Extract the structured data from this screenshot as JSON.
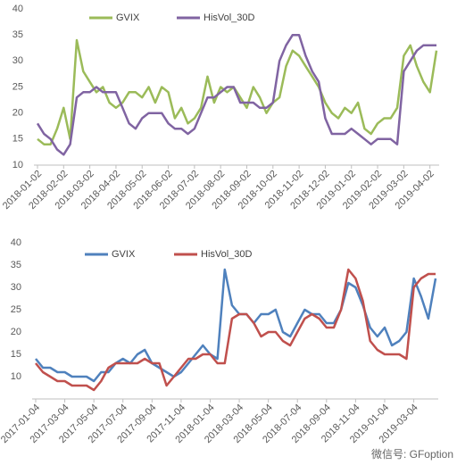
{
  "chart_data": [
    {
      "type": "line",
      "categories": [
        "2018-01-02",
        null,
        null,
        null,
        "2018-02-02",
        null,
        null,
        null,
        "2018-03-02",
        null,
        null,
        null,
        "2018-04-02",
        null,
        null,
        null,
        "2018-05-02",
        null,
        null,
        null,
        "2018-06-02",
        null,
        null,
        null,
        "2018-07-02",
        null,
        null,
        null,
        "2018-08-02",
        null,
        null,
        null,
        "2018-09-02",
        null,
        null,
        null,
        "2018-10-02",
        null,
        null,
        null,
        "2018-11-02",
        null,
        null,
        null,
        "2018-12-02",
        null,
        null,
        null,
        "2019-01-02",
        null,
        null,
        null,
        "2019-02-02",
        null,
        null,
        null,
        "2019-03-02",
        null,
        null,
        null,
        "2019-04-02",
        null
      ],
      "series": [
        {
          "name": "GVIX",
          "color": "#9bbb59",
          "values": [
            15,
            14,
            14,
            17,
            21,
            15,
            34,
            28,
            26,
            24,
            25,
            22,
            21,
            22,
            24,
            24,
            23,
            25,
            22,
            25,
            24,
            19,
            21,
            18,
            19,
            21,
            27,
            22,
            25,
            24,
            25,
            23,
            21,
            25,
            23,
            20,
            22,
            23,
            29,
            32,
            31,
            29,
            27,
            25,
            22,
            20,
            19,
            21,
            20,
            22,
            17,
            16,
            18,
            19,
            19,
            21,
            31,
            33,
            29,
            26,
            24,
            32
          ]
        },
        {
          "name": "HisVol_30D",
          "color": "#8064a2",
          "values": [
            18,
            16,
            15,
            13,
            12,
            14,
            23,
            24,
            24,
            25,
            24,
            24,
            24,
            21,
            18,
            17,
            19,
            20,
            20,
            20,
            18,
            17,
            17,
            16,
            17,
            20,
            23,
            23,
            24,
            25,
            25,
            22,
            22,
            22,
            21,
            21,
            22,
            30,
            33,
            35,
            35,
            31,
            28,
            26,
            19,
            16,
            16,
            16,
            17,
            16,
            15,
            14,
            15,
            15,
            15,
            14,
            28,
            30,
            32,
            33,
            33,
            33
          ]
        }
      ],
      "ylim": [
        10,
        40
      ],
      "yticks": [
        10,
        15,
        20,
        25,
        30,
        35,
        40
      ],
      "legend": "top"
    },
    {
      "type": "line",
      "categories": [
        "2017-01-04",
        null,
        null,
        null,
        "2017-03-04",
        null,
        null,
        null,
        "2017-05-04",
        null,
        null,
        null,
        "2017-07-04",
        null,
        null,
        null,
        "2017-09-04",
        null,
        null,
        null,
        "2017-11-04",
        null,
        null,
        null,
        "2018-01-04",
        null,
        null,
        null,
        "2018-03-04",
        null,
        null,
        null,
        "2018-05-04",
        null,
        null,
        null,
        "2018-07-04",
        null,
        null,
        null,
        "2018-09-04",
        null,
        null,
        null,
        "2018-11-04",
        null,
        null,
        null,
        "2019-01-04",
        null,
        null,
        null,
        "2019-03-04",
        null,
        null,
        null
      ],
      "series": [
        {
          "name": "GVIX",
          "color": "#4f81bd",
          "values": [
            14,
            12,
            12,
            11,
            11,
            10,
            10,
            10,
            9,
            11,
            11,
            13,
            14,
            13,
            15,
            16,
            13,
            12,
            11,
            10,
            11,
            13,
            15,
            17,
            15,
            14,
            34,
            26,
            24,
            24,
            22,
            24,
            24,
            25,
            20,
            19,
            22,
            25,
            24,
            24,
            22,
            22,
            25,
            31,
            30,
            26,
            21,
            19,
            21,
            17,
            18,
            20,
            32,
            28,
            23,
            32
          ]
        },
        {
          "name": "HisVol_30D",
          "color": "#c0504d",
          "values": [
            13,
            11,
            10,
            9,
            9,
            8,
            8,
            8,
            7,
            9,
            12,
            13,
            13,
            13,
            13,
            14,
            13,
            13,
            8,
            10,
            12,
            14,
            14,
            15,
            15,
            13,
            13,
            23,
            24,
            24,
            22,
            19,
            20,
            20,
            18,
            17,
            20,
            23,
            24,
            23,
            21,
            21,
            25,
            34,
            32,
            27,
            18,
            16,
            15,
            15,
            15,
            14,
            30,
            32,
            33,
            33
          ]
        }
      ],
      "ylim": [
        5,
        40
      ],
      "yticks": [
        10,
        15,
        20,
        25,
        30,
        35,
        40
      ],
      "legend": "top"
    }
  ],
  "watermark": "微信号: GFoption"
}
